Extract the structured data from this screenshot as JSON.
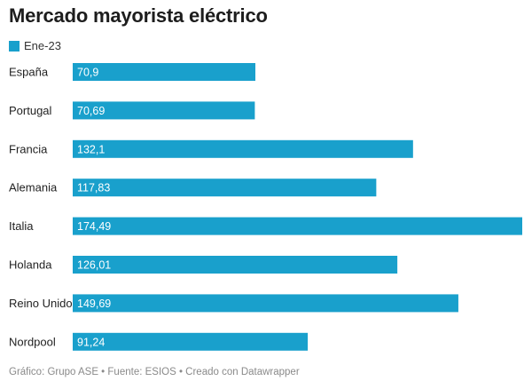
{
  "title": "Mercado mayorista eléctrico",
  "legend": {
    "label": "Ene-23",
    "color": "#19a0cc"
  },
  "footer": "Gráfico: Grupo ASE • Fuente: ESIOS • Creado con Datawrapper",
  "chart_data": {
    "type": "bar",
    "orientation": "horizontal",
    "categories": [
      "España",
      "Portugal",
      "Francia",
      "Alemania",
      "Italia",
      "Holanda",
      "Reino Unido",
      "Nordpool"
    ],
    "series": [
      {
        "name": "Ene-23",
        "values": [
          70.9,
          70.69,
          132.1,
          117.83,
          174.49,
          126.01,
          149.69,
          91.24
        ]
      }
    ],
    "value_labels": [
      "70,9",
      "70,69",
      "132,1",
      "117,83",
      "174,49",
      "126,01",
      "149,69",
      "91,24"
    ],
    "xlim": [
      0,
      174.49
    ],
    "grid": false,
    "legend_position": "top-left"
  }
}
